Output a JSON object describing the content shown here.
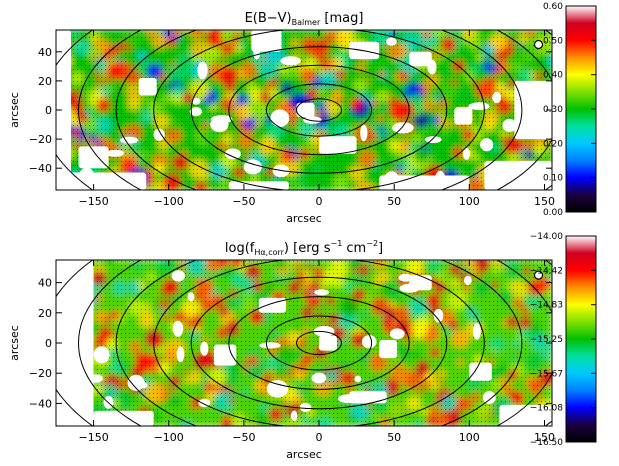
{
  "chart_data": [
    {
      "type": "heatmap",
      "title": "E(B−V)",
      "title_subscript": "Balmer",
      "title_suffix": "[mag]",
      "xlabel": "arcsec",
      "ylabel": "arcsec",
      "xlim": [
        -175,
        155
      ],
      "ylim": [
        -55,
        55
      ],
      "xticks": [
        -150,
        -100,
        -50,
        0,
        50,
        100,
        150
      ],
      "yticks": [
        -40,
        -20,
        0,
        20,
        40
      ],
      "colorbar": {
        "range": [
          0.0,
          0.6
        ],
        "ticks": [
          "0.00",
          "0.10",
          "0.20",
          "0.30",
          "0.40",
          "0.50",
          "0.60"
        ]
      },
      "ellipse_radii": [
        15,
        35,
        60,
        85,
        110,
        135,
        160,
        185
      ],
      "inclination_axis_ratio": 0.55,
      "beam_marker": {
        "x": 146,
        "y": 45
      }
    },
    {
      "type": "heatmap",
      "title": "log(f",
      "title_subscript": "Hα,corr",
      "title_suffix": ") [erg s",
      "title_exp1": "−1",
      "title_mid": " cm",
      "title_exp2": "−2",
      "title_end": "]",
      "xlabel": "arcsec",
      "ylabel": "arcsec",
      "xlim": [
        -175,
        155
      ],
      "ylim": [
        -55,
        55
      ],
      "xticks": [
        -150,
        -100,
        -50,
        0,
        50,
        100,
        150
      ],
      "yticks": [
        -40,
        -20,
        0,
        20,
        40
      ],
      "colorbar": {
        "range": [
          -16.5,
          -14.0
        ],
        "ticks": [
          "−14.00",
          "−14.42",
          "−14.83",
          "−15.25",
          "−15.67",
          "−16.08",
          "−16.50"
        ]
      },
      "ellipse_radii": [
        15,
        35,
        60,
        85,
        110,
        135,
        160,
        185
      ],
      "inclination_axis_ratio": 0.55,
      "beam_marker": {
        "x": 146,
        "y": 45
      }
    }
  ],
  "colors": {
    "colormap": [
      "#000000",
      "#1a0040",
      "#0000ff",
      "#0080ff",
      "#00c8ff",
      "#00e0a0",
      "#00c000",
      "#80e000",
      "#ffff00",
      "#ff9000",
      "#ff0000",
      "#d00020",
      "#ffffff"
    ]
  }
}
